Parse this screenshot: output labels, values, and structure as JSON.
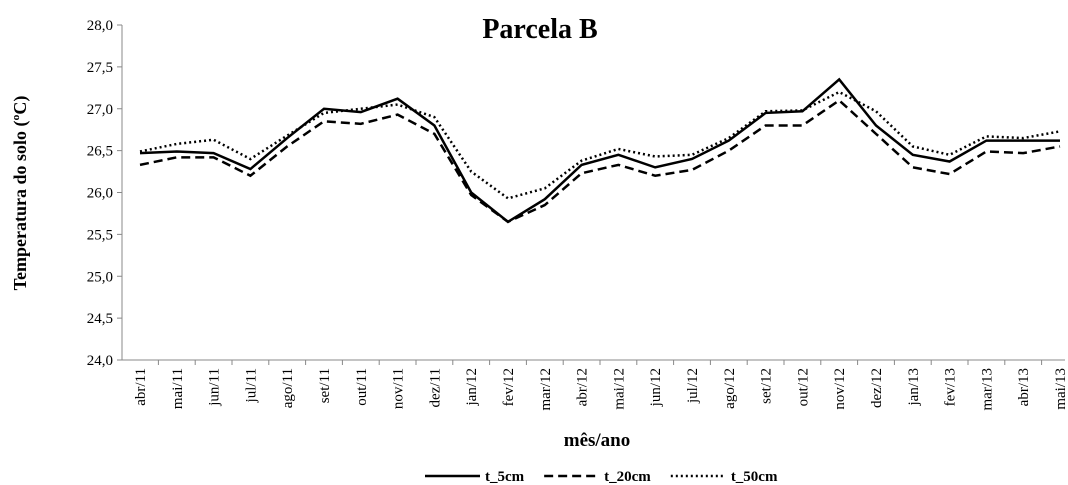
{
  "chart_data": {
    "type": "line",
    "title": "Parcela B",
    "x_label": "mês/ano",
    "y_label": "Temperatura do solo (ºC)",
    "categories": [
      "abr/11",
      "mai/11",
      "jun/11",
      "jul/11",
      "ago/11",
      "set/11",
      "out/11",
      "nov/11",
      "dez/11",
      "jan/12",
      "fev/12",
      "mar/12",
      "abr/12",
      "mai/12",
      "jun/12",
      "jul/12",
      "ago/12",
      "set/12",
      "out/12",
      "nov/12",
      "dez/12",
      "jan/13",
      "fev/13",
      "mar/13",
      "abr/13",
      "mai/13"
    ],
    "series": [
      {
        "name": "t_5cm",
        "color": "#000000",
        "dash": "solid",
        "values": [
          26.47,
          26.49,
          26.47,
          26.28,
          26.65,
          27.0,
          26.96,
          27.12,
          26.8,
          26.0,
          25.65,
          25.92,
          26.33,
          26.45,
          26.3,
          26.4,
          26.62,
          26.95,
          26.97,
          27.35,
          26.8,
          26.45,
          26.37,
          26.62,
          26.62,
          26.62
        ]
      },
      {
        "name": "t_20cm",
        "color": "#000000",
        "dash": "dashed",
        "values": [
          26.33,
          26.42,
          26.42,
          26.2,
          26.55,
          26.85,
          26.82,
          26.93,
          26.7,
          25.97,
          25.65,
          25.85,
          26.23,
          26.33,
          26.2,
          26.27,
          26.5,
          26.8,
          26.8,
          27.1,
          26.7,
          26.3,
          26.22,
          26.49,
          26.47,
          26.55
        ]
      },
      {
        "name": "t_50cm",
        "color": "#000000",
        "dash": "dotted",
        "values": [
          26.49,
          26.58,
          26.63,
          26.4,
          26.68,
          26.95,
          27.0,
          27.05,
          26.9,
          26.25,
          25.93,
          26.05,
          26.38,
          26.52,
          26.43,
          26.45,
          26.65,
          26.97,
          26.98,
          27.2,
          26.97,
          26.55,
          26.45,
          26.67,
          26.65,
          26.73
        ]
      }
    ],
    "ylim": [
      24,
      28
    ],
    "yticks": [
      {
        "value": 24,
        "label": "24,0"
      },
      {
        "value": 24.5,
        "label": "24,5"
      },
      {
        "value": 25,
        "label": "25,0"
      },
      {
        "value": 25.5,
        "label": "25,5"
      },
      {
        "value": 26,
        "label": "26,0"
      },
      {
        "value": 26.5,
        "label": "26,5"
      },
      {
        "value": 27,
        "label": "27,0"
      },
      {
        "value": 27.5,
        "label": "27,5"
      },
      {
        "value": 28,
        "label": "28,0"
      }
    ],
    "legend": "bottom"
  }
}
